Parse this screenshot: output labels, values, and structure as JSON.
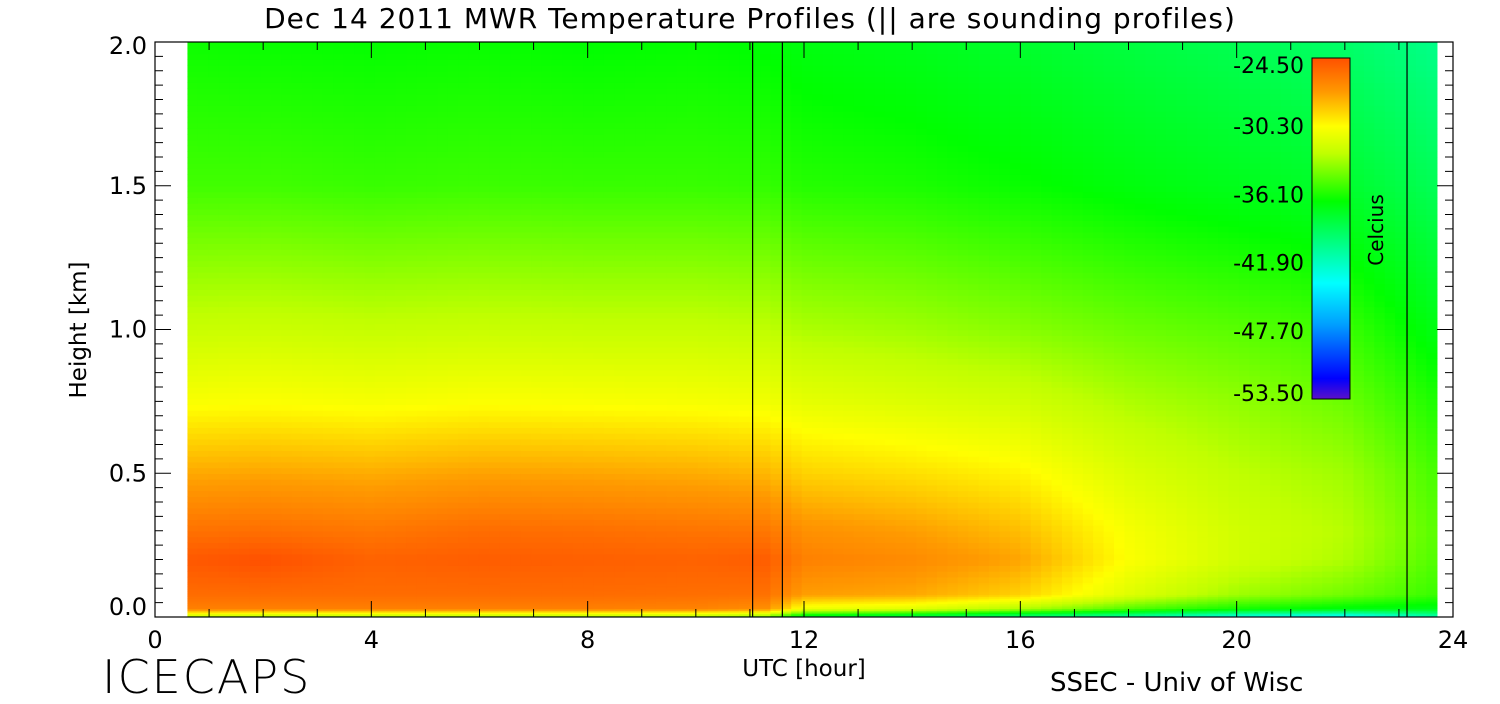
{
  "chart_data": {
    "type": "heatmap",
    "title": "Dec 14 2011 MWR Temperature Profiles (|| are sounding profiles)",
    "xlabel": "UTC [hour]",
    "ylabel": "Height [km]",
    "xlim": [
      0,
      24
    ],
    "ylim": [
      0,
      2.0
    ],
    "x_ticks": [
      "0",
      "4",
      "8",
      "12",
      "16",
      "20",
      "24"
    ],
    "y_ticks": [
      "0.0",
      "0.5",
      "1.0",
      "1.5",
      "2.0"
    ],
    "data_x_range": [
      0.6,
      23.7
    ],
    "sounding_times": [
      11.05,
      11.6,
      23.15
    ],
    "colorbar": {
      "label": "Celcius",
      "ticks": [
        "-24.50",
        "-30.30",
        "-36.10",
        "-41.90",
        "-47.70",
        "-53.50"
      ],
      "range": [
        -53.5,
        -24.5
      ]
    },
    "temperature_grid": {
      "times": [
        0.6,
        2,
        4,
        6,
        8,
        10,
        11.3,
        12,
        14,
        16,
        18,
        20,
        22,
        23.7
      ],
      "heights": [
        0.0,
        0.03,
        0.08,
        0.2,
        0.3,
        0.5,
        0.75,
        1.0,
        1.5,
        2.0
      ],
      "values": [
        [
          -33.5,
          -26.4,
          -25.6,
          -24.8,
          -25.8,
          -27.8,
          -30.5,
          -32.3,
          -35.3,
          -36.4
        ],
        [
          -34.0,
          -26.4,
          -25.6,
          -24.5,
          -25.7,
          -27.7,
          -30.4,
          -32.2,
          -35.3,
          -36.5
        ],
        [
          -34.0,
          -26.4,
          -25.6,
          -25.2,
          -26.0,
          -27.9,
          -30.6,
          -32.4,
          -35.5,
          -36.6
        ],
        [
          -34.0,
          -26.4,
          -25.6,
          -25.0,
          -25.6,
          -27.6,
          -30.4,
          -32.3,
          -35.4,
          -36.5
        ],
        [
          -34.0,
          -26.4,
          -25.6,
          -25.1,
          -25.7,
          -27.7,
          -30.5,
          -32.4,
          -35.5,
          -36.7
        ],
        [
          -34.0,
          -26.5,
          -25.7,
          -25.2,
          -25.9,
          -27.9,
          -30.6,
          -32.4,
          -35.5,
          -36.6
        ],
        [
          -35.0,
          -27.0,
          -25.8,
          -25.0,
          -26.0,
          -28.2,
          -30.8,
          -32.6,
          -35.6,
          -36.8
        ],
        [
          -39.0,
          -31.0,
          -27.5,
          -26.4,
          -27.0,
          -29.0,
          -31.2,
          -33.0,
          -35.9,
          -37.1
        ],
        [
          -40.0,
          -31.5,
          -27.8,
          -26.8,
          -27.5,
          -29.4,
          -31.6,
          -33.3,
          -36.1,
          -37.4
        ],
        [
          -41.0,
          -33.0,
          -29.0,
          -27.7,
          -28.4,
          -30.0,
          -32.0,
          -33.8,
          -36.5,
          -37.9
        ],
        [
          -42.0,
          -35.0,
          -31.5,
          -30.4,
          -30.6,
          -31.6,
          -33.0,
          -34.4,
          -37.0,
          -38.4
        ],
        [
          -44.0,
          -36.3,
          -33.3,
          -32.0,
          -32.0,
          -32.6,
          -33.6,
          -34.8,
          -37.4,
          -38.9
        ],
        [
          -45.0,
          -37.0,
          -34.3,
          -33.0,
          -32.8,
          -33.3,
          -34.4,
          -35.4,
          -37.9,
          -39.5
        ],
        [
          -42.0,
          -37.3,
          -35.5,
          -35.0,
          -34.8,
          -35.2,
          -36.1,
          -37.2,
          -39.0,
          -40.4
        ]
      ]
    }
  },
  "footer": {
    "logo_text": "ICECAPS",
    "credit": "SSEC - Univ of Wisc"
  }
}
